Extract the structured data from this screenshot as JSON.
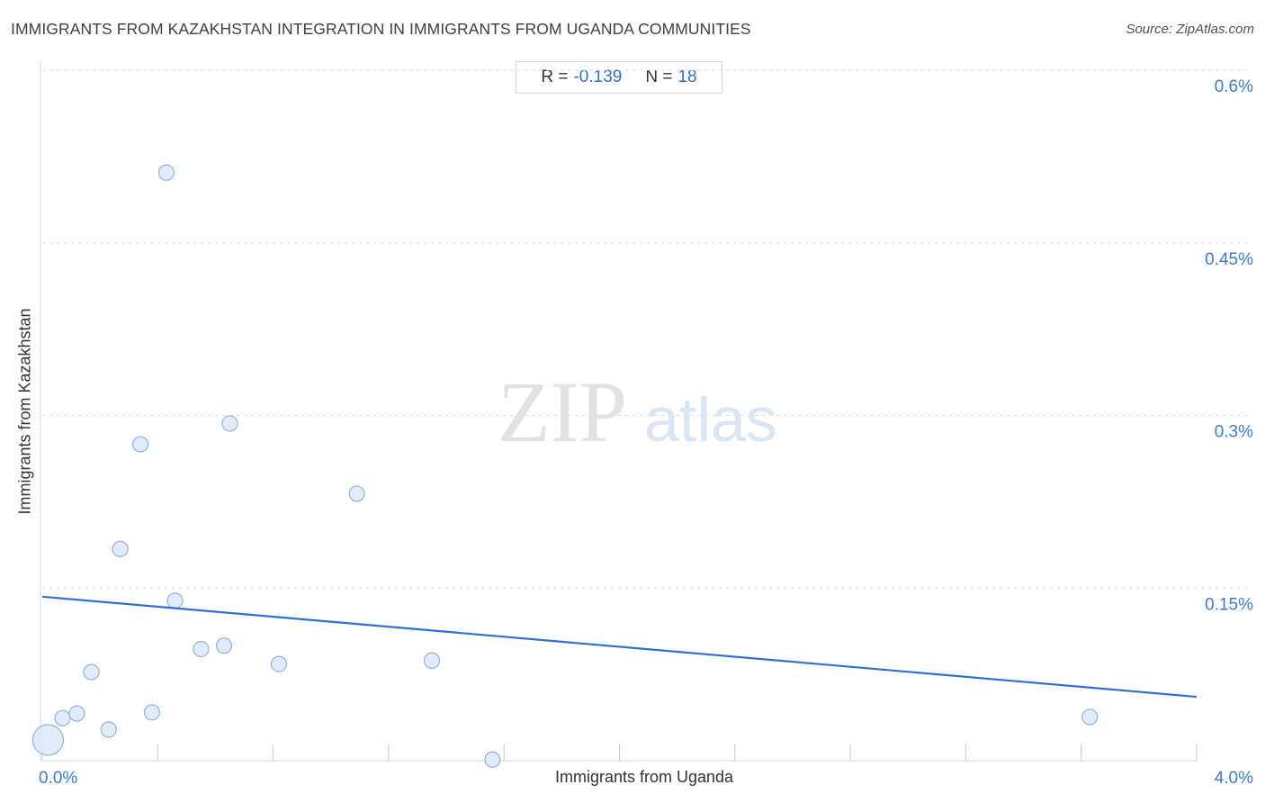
{
  "header": {
    "title": "IMMIGRANTS FROM KAZAKHSTAN INTEGRATION IN IMMIGRANTS FROM UGANDA COMMUNITIES",
    "source": "Source: ZipAtlas.com"
  },
  "stats": {
    "r_label": "R =",
    "r_value": "-0.139",
    "n_label": "N =",
    "n_value": "18"
  },
  "watermark": {
    "zip": "ZIP",
    "atlas": "atlas"
  },
  "colors": {
    "accent": "#2f6fd0",
    "point_fill": "#dce8f8",
    "point_stroke": "#8fb3e3",
    "trend": "#2f6fd0",
    "grid": "#dddddd"
  },
  "chart_data": {
    "type": "scatter",
    "title": "IMMIGRANTS FROM KAZAKHSTAN INTEGRATION IN IMMIGRANTS FROM UGANDA COMMUNITIES",
    "xlabel": "Immigrants from Uganda",
    "ylabel": "Immigrants from Kazakhstan",
    "xlim": [
      0,
      4.0
    ],
    "ylim": [
      0,
      0.6
    ],
    "x_tick_labels": [
      {
        "value": 0,
        "label": "0.0%"
      },
      {
        "value": 4.0,
        "label": "4.0%"
      }
    ],
    "y_tick_labels": [
      {
        "value": 0.15,
        "label": "0.15%"
      },
      {
        "value": 0.3,
        "label": "0.3%"
      },
      {
        "value": 0.45,
        "label": "0.45%"
      },
      {
        "value": 0.6,
        "label": "0.6%"
      }
    ],
    "grid": "horizontal dashed",
    "points": [
      {
        "x": 0.02,
        "y": 0.018,
        "size": "large"
      },
      {
        "x": 0.07,
        "y": 0.037,
        "size": "normal"
      },
      {
        "x": 0.12,
        "y": 0.041,
        "size": "normal"
      },
      {
        "x": 0.17,
        "y": 0.077,
        "size": "normal"
      },
      {
        "x": 0.23,
        "y": 0.027,
        "size": "normal"
      },
      {
        "x": 0.27,
        "y": 0.184,
        "size": "normal"
      },
      {
        "x": 0.34,
        "y": 0.275,
        "size": "normal"
      },
      {
        "x": 0.38,
        "y": 0.042,
        "size": "normal"
      },
      {
        "x": 0.43,
        "y": 0.511,
        "size": "normal"
      },
      {
        "x": 0.46,
        "y": 0.139,
        "size": "normal"
      },
      {
        "x": 0.55,
        "y": 0.097,
        "size": "normal"
      },
      {
        "x": 0.63,
        "y": 0.1,
        "size": "normal"
      },
      {
        "x": 0.65,
        "y": 0.293,
        "size": "normal"
      },
      {
        "x": 0.82,
        "y": 0.084,
        "size": "normal"
      },
      {
        "x": 1.09,
        "y": 0.232,
        "size": "normal"
      },
      {
        "x": 1.35,
        "y": 0.087,
        "size": "normal"
      },
      {
        "x": 1.56,
        "y": 0.001,
        "size": "normal"
      },
      {
        "x": 3.63,
        "y": 0.038,
        "size": "normal"
      }
    ],
    "trendline": {
      "x": [
        0,
        4.0
      ],
      "y": [
        0.1425,
        0.0555
      ]
    },
    "stats": {
      "R": -0.139,
      "N": 18
    }
  }
}
